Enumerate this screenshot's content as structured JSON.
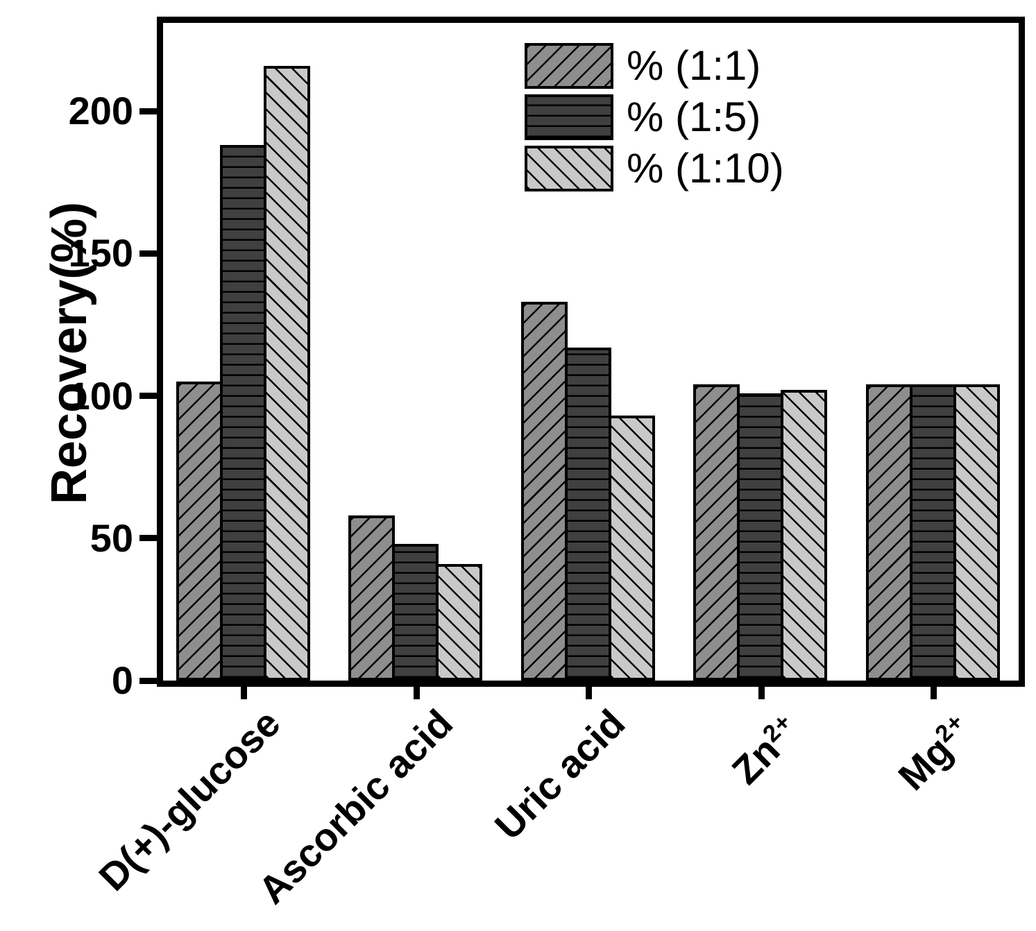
{
  "chart_data": {
    "type": "bar",
    "title": "",
    "xlabel": "",
    "ylabel": "Recovery(%)",
    "ylim": [
      0,
      231
    ],
    "yticks": [
      0,
      50,
      100,
      150,
      200
    ],
    "grid": false,
    "legend_position": "top-center-inside",
    "categories": [
      {
        "label": "D(+)-glucose",
        "sup": ""
      },
      {
        "label": "Ascorbic acid",
        "sup": ""
      },
      {
        "label": "Uric acid",
        "sup": ""
      },
      {
        "label": "Zn",
        "sup": "2+"
      },
      {
        "label": "Mg",
        "sup": "2+"
      }
    ],
    "series": [
      {
        "name": "% (1:1)",
        "fill": "#8e8e8e",
        "hatch": "forward-diagonal",
        "values": [
          105,
          58,
          133,
          104,
          104
        ]
      },
      {
        "name": "% (1:5)",
        "fill": "#404040",
        "hatch": "horizontal",
        "values": [
          188,
          48,
          117,
          101,
          104
        ]
      },
      {
        "name": "% (1:10)",
        "fill": "#c9c9c9",
        "hatch": "backward-diagonal",
        "values": [
          216,
          41,
          93,
          102,
          104
        ]
      }
    ]
  },
  "colors": {
    "axis": "#000000",
    "background": "#ffffff",
    "hatch_line": "#000000"
  }
}
